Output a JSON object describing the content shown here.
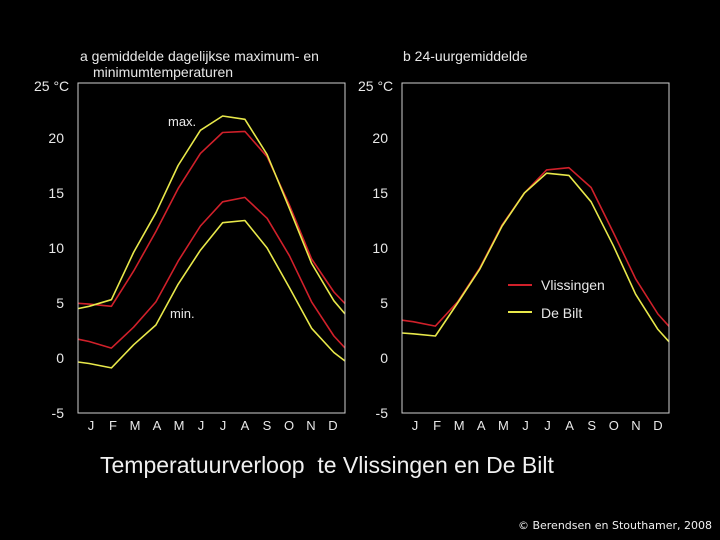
{
  "slide_title": "Temperatuurverloop  te Vlissingen en De Bilt",
  "copyright": "© Berendsen en Stouthamer, 2008",
  "colors": {
    "background": "#000000",
    "vlissingen": "#d0202a",
    "de_bilt": "#e8e84a",
    "text": "#e8e8e8"
  },
  "chart_data": [
    {
      "type": "line",
      "title": "a  gemiddelde dagelijkse maximum- en",
      "subtitle": "minimumtemperaturen",
      "ylabel": "25 °C",
      "categories": [
        "J",
        "F",
        "M",
        "A",
        "M",
        "J",
        "J",
        "A",
        "S",
        "O",
        "N",
        "D"
      ],
      "y_ticks": [
        "25",
        "20",
        "15",
        "10",
        "5",
        "0",
        "-5"
      ],
      "ylim": [
        -5,
        25
      ],
      "annotations": [
        "max.",
        "min."
      ],
      "series": [
        {
          "role": "max",
          "station": "vlissingen",
          "values": [
            4.9,
            4.7,
            7.9,
            11.5,
            15.4,
            18.6,
            20.5,
            20.6,
            18.3,
            13.9,
            9.0,
            6.0
          ]
        },
        {
          "role": "max",
          "station": "de_bilt",
          "values": [
            4.7,
            5.3,
            9.6,
            13.2,
            17.5,
            20.7,
            22.0,
            21.7,
            18.5,
            13.6,
            8.6,
            5.2
          ]
        },
        {
          "role": "min",
          "station": "vlissingen",
          "values": [
            1.5,
            0.9,
            2.8,
            5.1,
            8.8,
            12.0,
            14.2,
            14.6,
            12.7,
            9.3,
            5.1,
            2.0
          ]
        },
        {
          "role": "min",
          "station": "de_bilt",
          "values": [
            -0.5,
            -0.9,
            1.2,
            3.0,
            6.7,
            9.8,
            12.3,
            12.5,
            10.0,
            6.4,
            2.7,
            0.5
          ]
        }
      ]
    },
    {
      "type": "line",
      "title": "b  24-uurgemiddelde",
      "ylabel": "25 °C",
      "categories": [
        "J",
        "F",
        "M",
        "A",
        "M",
        "J",
        "J",
        "A",
        "S",
        "O",
        "N",
        "D"
      ],
      "y_ticks": [
        "25",
        "20",
        "15",
        "10",
        "5",
        "0",
        "-5"
      ],
      "ylim": [
        -5,
        25
      ],
      "legend_position": "right",
      "series": [
        {
          "name": "Vlissingen",
          "station": "vlissingen",
          "values": [
            3.3,
            2.9,
            5.1,
            8.2,
            12.1,
            15.0,
            17.1,
            17.3,
            15.5,
            11.4,
            7.2,
            4.0
          ]
        },
        {
          "name": "De Bilt",
          "station": "de_bilt",
          "values": [
            2.2,
            2.0,
            5.0,
            8.1,
            12.0,
            15.0,
            16.8,
            16.6,
            14.2,
            10.2,
            5.8,
            2.6
          ]
        }
      ]
    }
  ]
}
